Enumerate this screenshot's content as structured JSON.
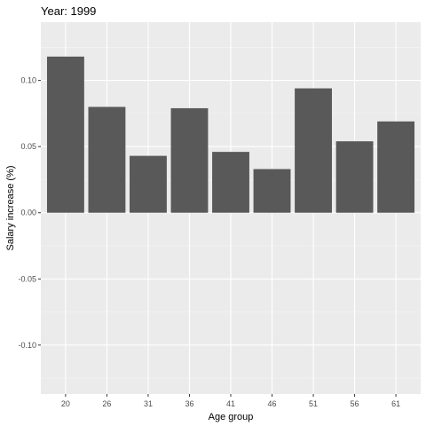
{
  "chart_data": {
    "type": "bar",
    "title": "Year: 1999",
    "xlabel": "Age group",
    "ylabel": "Salary increase (%)",
    "categories": [
      "20",
      "26",
      "31",
      "36",
      "41",
      "46",
      "51",
      "56",
      "61"
    ],
    "values": [
      0.118,
      0.08,
      0.043,
      0.079,
      0.046,
      0.033,
      0.094,
      0.054,
      0.069
    ],
    "ylim": [
      -0.137,
      0.144
    ],
    "yticks": [
      -0.1,
      -0.05,
      0.0,
      0.05,
      0.1
    ],
    "ytick_labels": [
      "-0.10",
      "-0.05",
      "0.00",
      "0.05",
      "0.10"
    ],
    "grid": true,
    "colors": {
      "bar": "#595959",
      "panel_background": "#ebebeb",
      "grid_major": "#ffffff",
      "grid_minor": "#f5f5f5",
      "text": "#000000",
      "tick_text": "#4d4d4d",
      "tick_mark": "#333333"
    }
  }
}
